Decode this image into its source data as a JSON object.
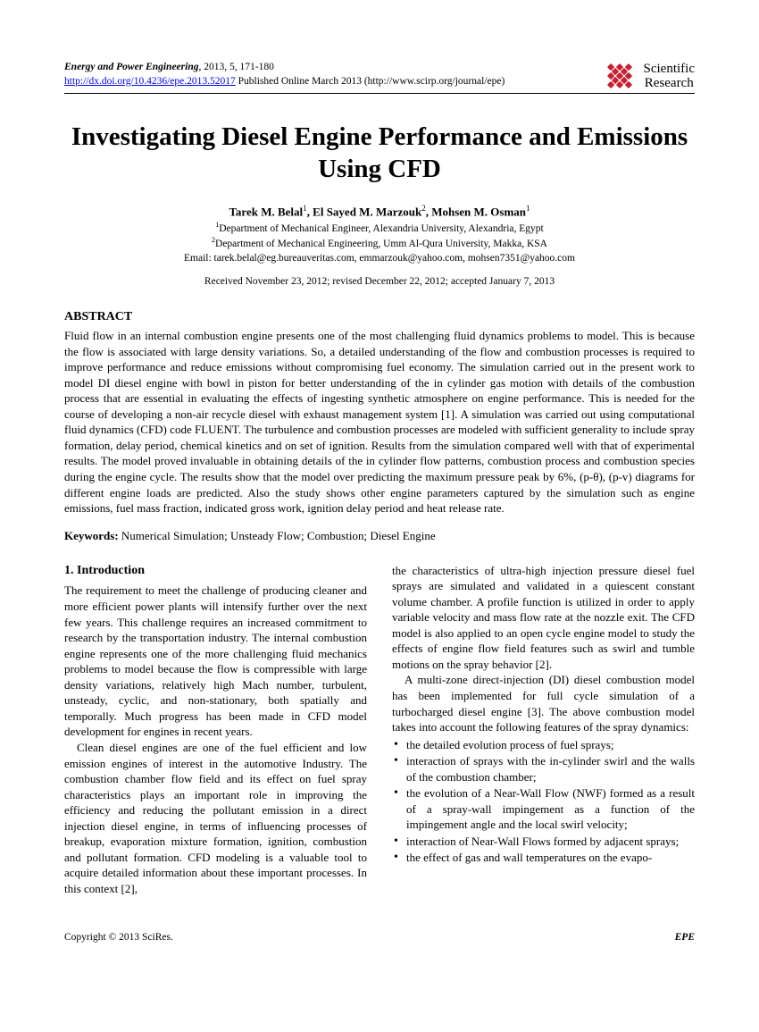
{
  "header": {
    "journal_name": "Energy and Power Engineering",
    "journal_info": ", 2013, 5, 171-180",
    "doi_url": "http://dx.doi.org/10.4236/epe.2013.52017",
    "pub_info": " Published Online March 2013 (http://www.scirp.org/journal/epe)",
    "publisher_line1": "Scientific",
    "publisher_line2": "Research"
  },
  "title": "Investigating Diesel Engine Performance and Emissions Using CFD",
  "authors": {
    "a1_name": "Tarek M. Belal",
    "a1_sup": "1",
    "a2_name": "El Sayed M. Marzouk",
    "a2_sup": "2",
    "a3_name": "Mohsen M. Osman",
    "a3_sup": "1"
  },
  "affiliations": {
    "aff1_sup": "1",
    "aff1": "Department of Mechanical Engineer, Alexandria University, Alexandria, Egypt",
    "aff2_sup": "2",
    "aff2": "Department of Mechanical Engineering, Umm Al-Qura University, Makka, KSA",
    "emails": "Email: tarek.belal@eg.bureauveritas.com, emmarzouk@yahoo.com, mohsen7351@yahoo.com"
  },
  "dates": "Received November 23, 2012; revised December 22, 2012; accepted January 7, 2013",
  "abstract": {
    "heading": "ABSTRACT",
    "text": "Fluid flow in an internal combustion engine presents one of the most challenging fluid dynamics problems to model. This is because the flow is associated with large density variations. So, a detailed understanding of the flow and combustion processes is required to improve performance and reduce emissions without compromising fuel economy. The simulation carried out in the present work to model DI diesel engine with bowl in piston for better understanding of the in cylinder gas motion with details of the combustion process that are essential in evaluating the effects of ingesting synthetic atmosphere on engine performance. This is needed for the course of developing a non-air recycle diesel with exhaust management system [1]. A simulation was carried out using computational fluid dynamics (CFD) code FLUENT. The turbulence and combustion processes are modeled with sufficient generality to include spray formation, delay period, chemical kinetics and on set of ignition. Results from the simulation compared well with that of experimental results. The model proved invaluable in obtaining details of the in cylinder flow patterns, combustion process and combustion species during the engine cycle. The results show that the model over predicting the maximum pressure peak by 6%, (p-θ), (p-v) diagrams for different engine loads are predicted. Also the study shows other engine parameters captured by the simulation such as engine emissions, fuel mass fraction, indicated gross work, ignition delay period and heat release rate."
  },
  "keywords": {
    "label": "Keywords:",
    "text": " Numerical Simulation; Unsteady Flow; Combustion; Diesel Engine"
  },
  "intro_heading": "1. Introduction",
  "col_left": {
    "p1": "The requirement to meet the challenge of producing cleaner and more efficient power plants will intensify further over the next few years. This challenge requires an increased commitment to research by the transportation industry. The internal combustion engine represents one of the more challenging fluid mechanics problems to model because the flow is compressible with large density variations, relatively high Mach number, turbulent, unsteady, cyclic, and non-stationary, both spatially and temporally. Much progress has been made in CFD model development for engines in recent years.",
    "p2": "Clean diesel engines are one of the fuel efficient and low emission engines of interest in the automotive Industry. The combustion chamber flow field and its effect on fuel spray characteristics plays an important role in improving the efficiency and reducing the pollutant emission in a direct injection diesel engine, in terms of influencing processes of breakup, evaporation mixture formation, ignition, combustion and pollutant formation. CFD modeling is a valuable tool to acquire detailed information about these important processes. In this context [2],"
  },
  "col_right": {
    "p1": "the characteristics of ultra-high injection pressure diesel fuel sprays are simulated and validated in a quiescent constant volume chamber. A profile function is utilized in order to apply variable velocity and mass flow rate at the nozzle exit. The CFD model is also applied to an open cycle engine model to study the effects of engine flow field features such as swirl and tumble motions on the spray behavior [2].",
    "p2": "A multi-zone direct-injection (DI) diesel combustion model has been implemented for full cycle simulation of a turbocharged diesel engine [3]. The above combustion model takes into account the following features of the spray dynamics:",
    "bullets": [
      "the detailed evolution process of fuel sprays;",
      "interaction of sprays with the in-cylinder swirl and the walls of the combustion chamber;",
      "the evolution of a Near-Wall Flow (NWF) formed as a result of a spray-wall impingement as a function of the impingement angle and the local swirl velocity;",
      "interaction of Near-Wall Flows formed by adjacent sprays;",
      "the effect of gas and wall temperatures on the evapo-"
    ]
  },
  "footer": {
    "left": "Copyright © 2013 SciRes.",
    "right": "EPE"
  }
}
